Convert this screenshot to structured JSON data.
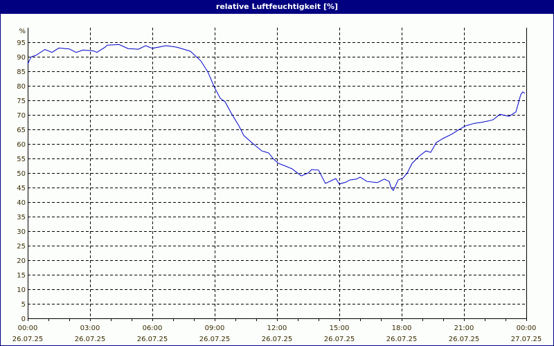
{
  "window": {
    "title": "relative Luftfeuchtigkeit [%]"
  },
  "colors": {
    "title_bar": "#000080",
    "series_line": "#0000cc",
    "axis_text": "#3a2a00",
    "grid": "#000000"
  },
  "chart_data": {
    "type": "line",
    "title": "relative Luftfeuchtigkeit [%]",
    "xlabel": "",
    "ylabel": "%",
    "ylim": [
      0,
      100
    ],
    "yticks": [
      0,
      5,
      10,
      15,
      20,
      25,
      30,
      35,
      40,
      45,
      50,
      55,
      60,
      65,
      70,
      75,
      80,
      85,
      90,
      95
    ],
    "xlim_hours": [
      0,
      24
    ],
    "xticks": [
      {
        "hour": 0,
        "time": "00:00",
        "date": "26.07.25"
      },
      {
        "hour": 3,
        "time": "03:00",
        "date": "26.07.25"
      },
      {
        "hour": 6,
        "time": "06:00",
        "date": "26.07.25"
      },
      {
        "hour": 9,
        "time": "09:00",
        "date": "26.07.25"
      },
      {
        "hour": 12,
        "time": "12:00",
        "date": "26.07.25"
      },
      {
        "hour": 15,
        "time": "15:00",
        "date": "26.07.25"
      },
      {
        "hour": 18,
        "time": "18:00",
        "date": "26.07.25"
      },
      {
        "hour": 21,
        "time": "21:00",
        "date": "26.07.25"
      },
      {
        "hour": 24,
        "time": "00:00",
        "date": "27.07.25"
      }
    ],
    "grid": true,
    "legend": null,
    "series": [
      {
        "name": "relative Luftfeuchtigkeit",
        "unit": "%",
        "x_hours": [
          0,
          0.17,
          0.4,
          0.83,
          1.17,
          1.5,
          2.0,
          2.33,
          2.67,
          3.17,
          3.33,
          3.73,
          3.83,
          4.4,
          4.83,
          5.33,
          5.67,
          6.0,
          6.67,
          7.17,
          7.83,
          8.33,
          8.67,
          9.0,
          9.27,
          9.5,
          9.83,
          10.17,
          10.4,
          10.83,
          11.27,
          11.6,
          11.83,
          12.07,
          12.4,
          12.73,
          13.17,
          13.5,
          13.67,
          14.0,
          14.33,
          14.83,
          15.0,
          15.33,
          15.5,
          15.83,
          16.0,
          16.33,
          16.83,
          17.17,
          17.4,
          17.5,
          17.6,
          17.83,
          18.07,
          18.27,
          18.5,
          18.83,
          19.17,
          19.4,
          19.67,
          20.0,
          20.4,
          20.73,
          21.07,
          21.5,
          21.83,
          22.17,
          22.4,
          22.73,
          23.17,
          23.5,
          23.73,
          23.83,
          23.93
        ],
        "values": [
          87.5,
          90,
          90.5,
          92.5,
          91.5,
          93,
          92.7,
          91.5,
          92.3,
          92,
          91.5,
          93.3,
          94,
          94.2,
          92.8,
          92.6,
          93.8,
          92.9,
          93.8,
          93.3,
          91.9,
          88.6,
          84.8,
          79.3,
          75.7,
          74.5,
          70.2,
          66.2,
          62.9,
          60.2,
          57.6,
          56.9,
          54.8,
          53.3,
          52.4,
          51.4,
          49,
          50,
          51.2,
          51,
          46.4,
          48.1,
          46.2,
          46.9,
          47.6,
          47.9,
          48.6,
          47.1,
          46.7,
          47.9,
          47.1,
          44.8,
          44,
          47.6,
          48.3,
          50,
          53.3,
          55.7,
          57.6,
          57.1,
          60.5,
          61.9,
          63.3,
          64.8,
          66.2,
          67.1,
          67.4,
          67.9,
          68.3,
          70.2,
          69.5,
          71,
          76.9,
          77.9,
          77.4
        ]
      }
    ]
  }
}
